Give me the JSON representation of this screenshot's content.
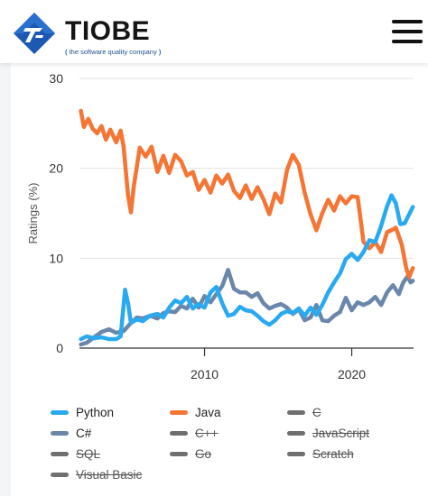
{
  "header": {
    "brand_name": "TIOBE",
    "tagline": "the software quality company",
    "tag_open": "(",
    "tag_close": ")",
    "logo_icon": "tiobe-logo-icon",
    "menu_icon": "hamburger-menu-icon",
    "colors": {
      "logo_blue": "#1d59b3",
      "brand_text": "#151515"
    }
  },
  "chart_data": {
    "type": "line",
    "title": "",
    "xlabel": "",
    "ylabel": "Ratings (%)",
    "ylim": [
      0,
      30
    ],
    "xlim": [
      2001.5,
      2024.2
    ],
    "yticks": [
      0,
      10,
      20,
      30
    ],
    "xticks": [
      2010,
      2020
    ],
    "grid": "horizontal",
    "legend_position": "bottom",
    "series": [
      {
        "name": "Python",
        "color": "#29aaf0",
        "visible": true,
        "points": [
          [
            2001.6,
            1.0
          ],
          [
            2002.0,
            1.3
          ],
          [
            2002.5,
            1.1
          ],
          [
            2003.0,
            1.2
          ],
          [
            2003.5,
            1.0
          ],
          [
            2004.0,
            1.0
          ],
          [
            2004.3,
            1.3
          ],
          [
            2004.6,
            6.5
          ],
          [
            2004.8,
            5.0
          ],
          [
            2005.0,
            2.8
          ],
          [
            2005.4,
            3.2
          ],
          [
            2005.8,
            3.0
          ],
          [
            2006.3,
            3.6
          ],
          [
            2006.8,
            3.8
          ],
          [
            2007.2,
            3.4
          ],
          [
            2007.6,
            4.5
          ],
          [
            2008.0,
            5.3
          ],
          [
            2008.4,
            5.0
          ],
          [
            2008.8,
            5.7
          ],
          [
            2009.2,
            4.4
          ],
          [
            2009.6,
            4.9
          ],
          [
            2010.0,
            4.5
          ],
          [
            2010.4,
            6.2
          ],
          [
            2010.8,
            6.8
          ],
          [
            2011.2,
            5.0
          ],
          [
            2011.6,
            3.6
          ],
          [
            2012.0,
            3.8
          ],
          [
            2012.4,
            4.6
          ],
          [
            2012.8,
            4.2
          ],
          [
            2013.2,
            4.1
          ],
          [
            2013.6,
            3.6
          ],
          [
            2014.0,
            3.0
          ],
          [
            2014.4,
            2.6
          ],
          [
            2014.8,
            3.1
          ],
          [
            2015.2,
            3.8
          ],
          [
            2015.6,
            4.1
          ],
          [
            2016.0,
            3.9
          ],
          [
            2016.4,
            4.4
          ],
          [
            2016.8,
            3.6
          ],
          [
            2017.2,
            4.5
          ],
          [
            2017.6,
            3.7
          ],
          [
            2018.0,
            4.8
          ],
          [
            2018.4,
            6.2
          ],
          [
            2018.8,
            7.3
          ],
          [
            2019.2,
            8.3
          ],
          [
            2019.6,
            9.9
          ],
          [
            2020.0,
            10.5
          ],
          [
            2020.4,
            9.8
          ],
          [
            2020.8,
            10.7
          ],
          [
            2021.2,
            12.0
          ],
          [
            2021.6,
            11.8
          ],
          [
            2022.0,
            13.6
          ],
          [
            2022.4,
            15.8
          ],
          [
            2022.7,
            17.0
          ],
          [
            2023.0,
            16.1
          ],
          [
            2023.3,
            13.8
          ],
          [
            2023.6,
            13.9
          ],
          [
            2024.0,
            15.2
          ],
          [
            2024.15,
            15.7
          ]
        ]
      },
      {
        "name": "Java",
        "color": "#f47534",
        "visible": true,
        "points": [
          [
            2001.6,
            26.4
          ],
          [
            2001.8,
            24.6
          ],
          [
            2002.1,
            25.5
          ],
          [
            2002.4,
            24.4
          ],
          [
            2002.7,
            23.9
          ],
          [
            2003.0,
            24.7
          ],
          [
            2003.3,
            23.2
          ],
          [
            2003.6,
            24.3
          ],
          [
            2004.0,
            22.9
          ],
          [
            2004.3,
            24.2
          ],
          [
            2004.5,
            22.4
          ],
          [
            2004.8,
            17.0
          ],
          [
            2005.0,
            15.1
          ],
          [
            2005.2,
            18.1
          ],
          [
            2005.6,
            22.3
          ],
          [
            2006.0,
            21.3
          ],
          [
            2006.4,
            22.4
          ],
          [
            2006.8,
            19.6
          ],
          [
            2007.2,
            21.4
          ],
          [
            2007.6,
            19.5
          ],
          [
            2008.0,
            21.5
          ],
          [
            2008.4,
            20.8
          ],
          [
            2008.8,
            19.2
          ],
          [
            2009.2,
            19.6
          ],
          [
            2009.6,
            17.6
          ],
          [
            2010.0,
            18.7
          ],
          [
            2010.4,
            17.3
          ],
          [
            2010.8,
            19.2
          ],
          [
            2011.2,
            18.3
          ],
          [
            2011.6,
            19.3
          ],
          [
            2012.0,
            17.5
          ],
          [
            2012.4,
            16.7
          ],
          [
            2012.8,
            18.1
          ],
          [
            2013.2,
            16.6
          ],
          [
            2013.6,
            17.9
          ],
          [
            2014.0,
            16.6
          ],
          [
            2014.4,
            14.9
          ],
          [
            2014.8,
            17.2
          ],
          [
            2015.2,
            16.2
          ],
          [
            2015.6,
            19.8
          ],
          [
            2016.0,
            21.5
          ],
          [
            2016.4,
            20.4
          ],
          [
            2016.8,
            17.3
          ],
          [
            2017.2,
            14.9
          ],
          [
            2017.6,
            13.1
          ],
          [
            2018.0,
            15.0
          ],
          [
            2018.4,
            16.5
          ],
          [
            2018.8,
            15.3
          ],
          [
            2019.2,
            16.9
          ],
          [
            2019.6,
            16.1
          ],
          [
            2020.0,
            16.9
          ],
          [
            2020.4,
            16.8
          ],
          [
            2020.8,
            11.8
          ],
          [
            2021.2,
            11.1
          ],
          [
            2021.6,
            11.8
          ],
          [
            2022.0,
            10.7
          ],
          [
            2022.4,
            12.9
          ],
          [
            2022.8,
            13.2
          ],
          [
            2023.0,
            13.4
          ],
          [
            2023.4,
            11.5
          ],
          [
            2023.7,
            8.9
          ],
          [
            2023.9,
            7.9
          ],
          [
            2024.15,
            8.9
          ]
        ]
      },
      {
        "name": "C",
        "color": "#6f6f6f",
        "visible": false,
        "points": []
      },
      {
        "name": "C#",
        "color": "#6a87ab",
        "visible": true,
        "points": [
          [
            2001.6,
            0.4
          ],
          [
            2002.0,
            0.6
          ],
          [
            2002.5,
            1.2
          ],
          [
            2003.0,
            1.8
          ],
          [
            2003.5,
            2.1
          ],
          [
            2004.0,
            1.7
          ],
          [
            2004.5,
            1.9
          ],
          [
            2005.0,
            2.8
          ],
          [
            2005.4,
            3.4
          ],
          [
            2005.8,
            3.3
          ],
          [
            2006.3,
            3.6
          ],
          [
            2006.8,
            3.3
          ],
          [
            2007.2,
            3.9
          ],
          [
            2007.6,
            4.1
          ],
          [
            2008.0,
            4.0
          ],
          [
            2008.4,
            4.7
          ],
          [
            2008.8,
            4.4
          ],
          [
            2009.2,
            5.5
          ],
          [
            2009.6,
            4.5
          ],
          [
            2010.0,
            5.8
          ],
          [
            2010.4,
            5.1
          ],
          [
            2010.8,
            6.0
          ],
          [
            2011.2,
            6.9
          ],
          [
            2011.6,
            8.7
          ],
          [
            2012.0,
            6.6
          ],
          [
            2012.4,
            6.2
          ],
          [
            2012.8,
            6.2
          ],
          [
            2013.2,
            5.7
          ],
          [
            2013.6,
            6.1
          ],
          [
            2014.0,
            5.0
          ],
          [
            2014.4,
            4.4
          ],
          [
            2014.8,
            4.7
          ],
          [
            2015.2,
            4.9
          ],
          [
            2015.6,
            4.5
          ],
          [
            2016.0,
            3.8
          ],
          [
            2016.4,
            4.3
          ],
          [
            2016.8,
            3.1
          ],
          [
            2017.2,
            3.4
          ],
          [
            2017.6,
            4.8
          ],
          [
            2018.0,
            3.1
          ],
          [
            2018.4,
            3.0
          ],
          [
            2018.8,
            3.6
          ],
          [
            2019.2,
            4.0
          ],
          [
            2019.6,
            5.6
          ],
          [
            2020.0,
            4.2
          ],
          [
            2020.4,
            5.1
          ],
          [
            2020.8,
            4.8
          ],
          [
            2021.2,
            5.1
          ],
          [
            2021.6,
            5.7
          ],
          [
            2022.0,
            4.8
          ],
          [
            2022.4,
            6.2
          ],
          [
            2022.8,
            7.0
          ],
          [
            2023.2,
            6.0
          ],
          [
            2023.5,
            7.3
          ],
          [
            2023.8,
            8.0
          ],
          [
            2024.0,
            7.3
          ],
          [
            2024.15,
            7.5
          ]
        ]
      },
      {
        "name": "C++",
        "color": "#6f6f6f",
        "visible": false,
        "points": []
      },
      {
        "name": "JavaScript",
        "color": "#6f6f6f",
        "visible": false,
        "points": []
      },
      {
        "name": "SQL",
        "color": "#6f6f6f",
        "visible": false,
        "points": []
      },
      {
        "name": "Go",
        "color": "#6f6f6f",
        "visible": false,
        "points": []
      },
      {
        "name": "Scratch",
        "color": "#6f6f6f",
        "visible": false,
        "points": []
      },
      {
        "name": "Visual Basic",
        "color": "#6f6f6f",
        "visible": false,
        "points": []
      }
    ]
  }
}
